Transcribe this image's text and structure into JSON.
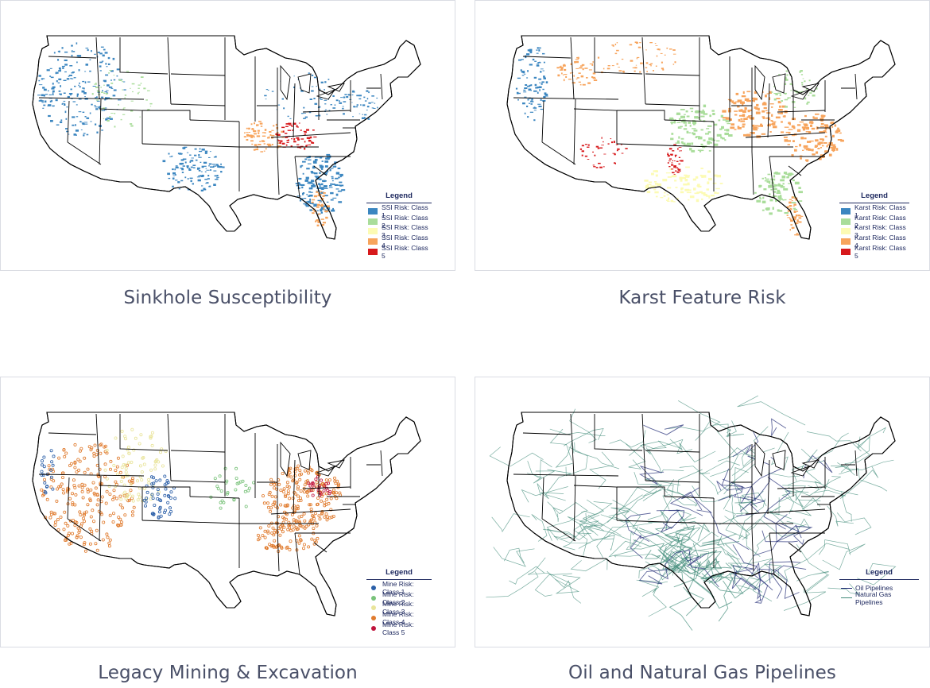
{
  "panels": [
    {
      "caption": "Sinkhole Susceptibility",
      "legend": {
        "title": "Legend",
        "items": [
          {
            "label": "SSI Risk: Class 1",
            "color": "#3b86c0"
          },
          {
            "label": "SSI Risk: Class 2",
            "color": "#a9dd9a"
          },
          {
            "label": "SSI Risk: Class 3",
            "color": "#fcfbb4"
          },
          {
            "label": "SSI Risk: Class 4",
            "color": "#f7a45c"
          },
          {
            "label": "SSI Risk: Class 5",
            "color": "#d7191c"
          }
        ]
      }
    },
    {
      "caption": "Karst Feature Risk",
      "legend": {
        "title": "Legend",
        "items": [
          {
            "label": "Karst Risk: Class 1",
            "color": "#3b86c0"
          },
          {
            "label": "Karst Risk: Class 2",
            "color": "#a9dd9a"
          },
          {
            "label": "Karst Risk: Class 3",
            "color": "#fcfbb4"
          },
          {
            "label": "Karst Risk: Class 4",
            "color": "#f7a45c"
          },
          {
            "label": "Karst Risk: Class 5",
            "color": "#d7191c"
          }
        ]
      }
    },
    {
      "caption": "Legacy Mining & Excavation",
      "legend": {
        "title": "Legend",
        "items": [
          {
            "label": "Mine Risk: Class 1",
            "color": "#2b5fa8"
          },
          {
            "label": "Mine Risk: Class 2",
            "color": "#79c27a"
          },
          {
            "label": "Mine Risk: Class 3",
            "color": "#e9e49a"
          },
          {
            "label": "Mine Risk: Class 4",
            "color": "#e07b2e"
          },
          {
            "label": "Mine Risk: Class 5",
            "color": "#c0143c"
          }
        ]
      }
    },
    {
      "caption": "Oil and Natural Gas Pipelines",
      "legend": {
        "title": "Legend",
        "items": [
          {
            "label": "Oil Pipelines",
            "color": "#1a2470"
          },
          {
            "label": "Natural Gas Pipelines",
            "color": "#3f8a78"
          }
        ]
      }
    }
  ]
}
